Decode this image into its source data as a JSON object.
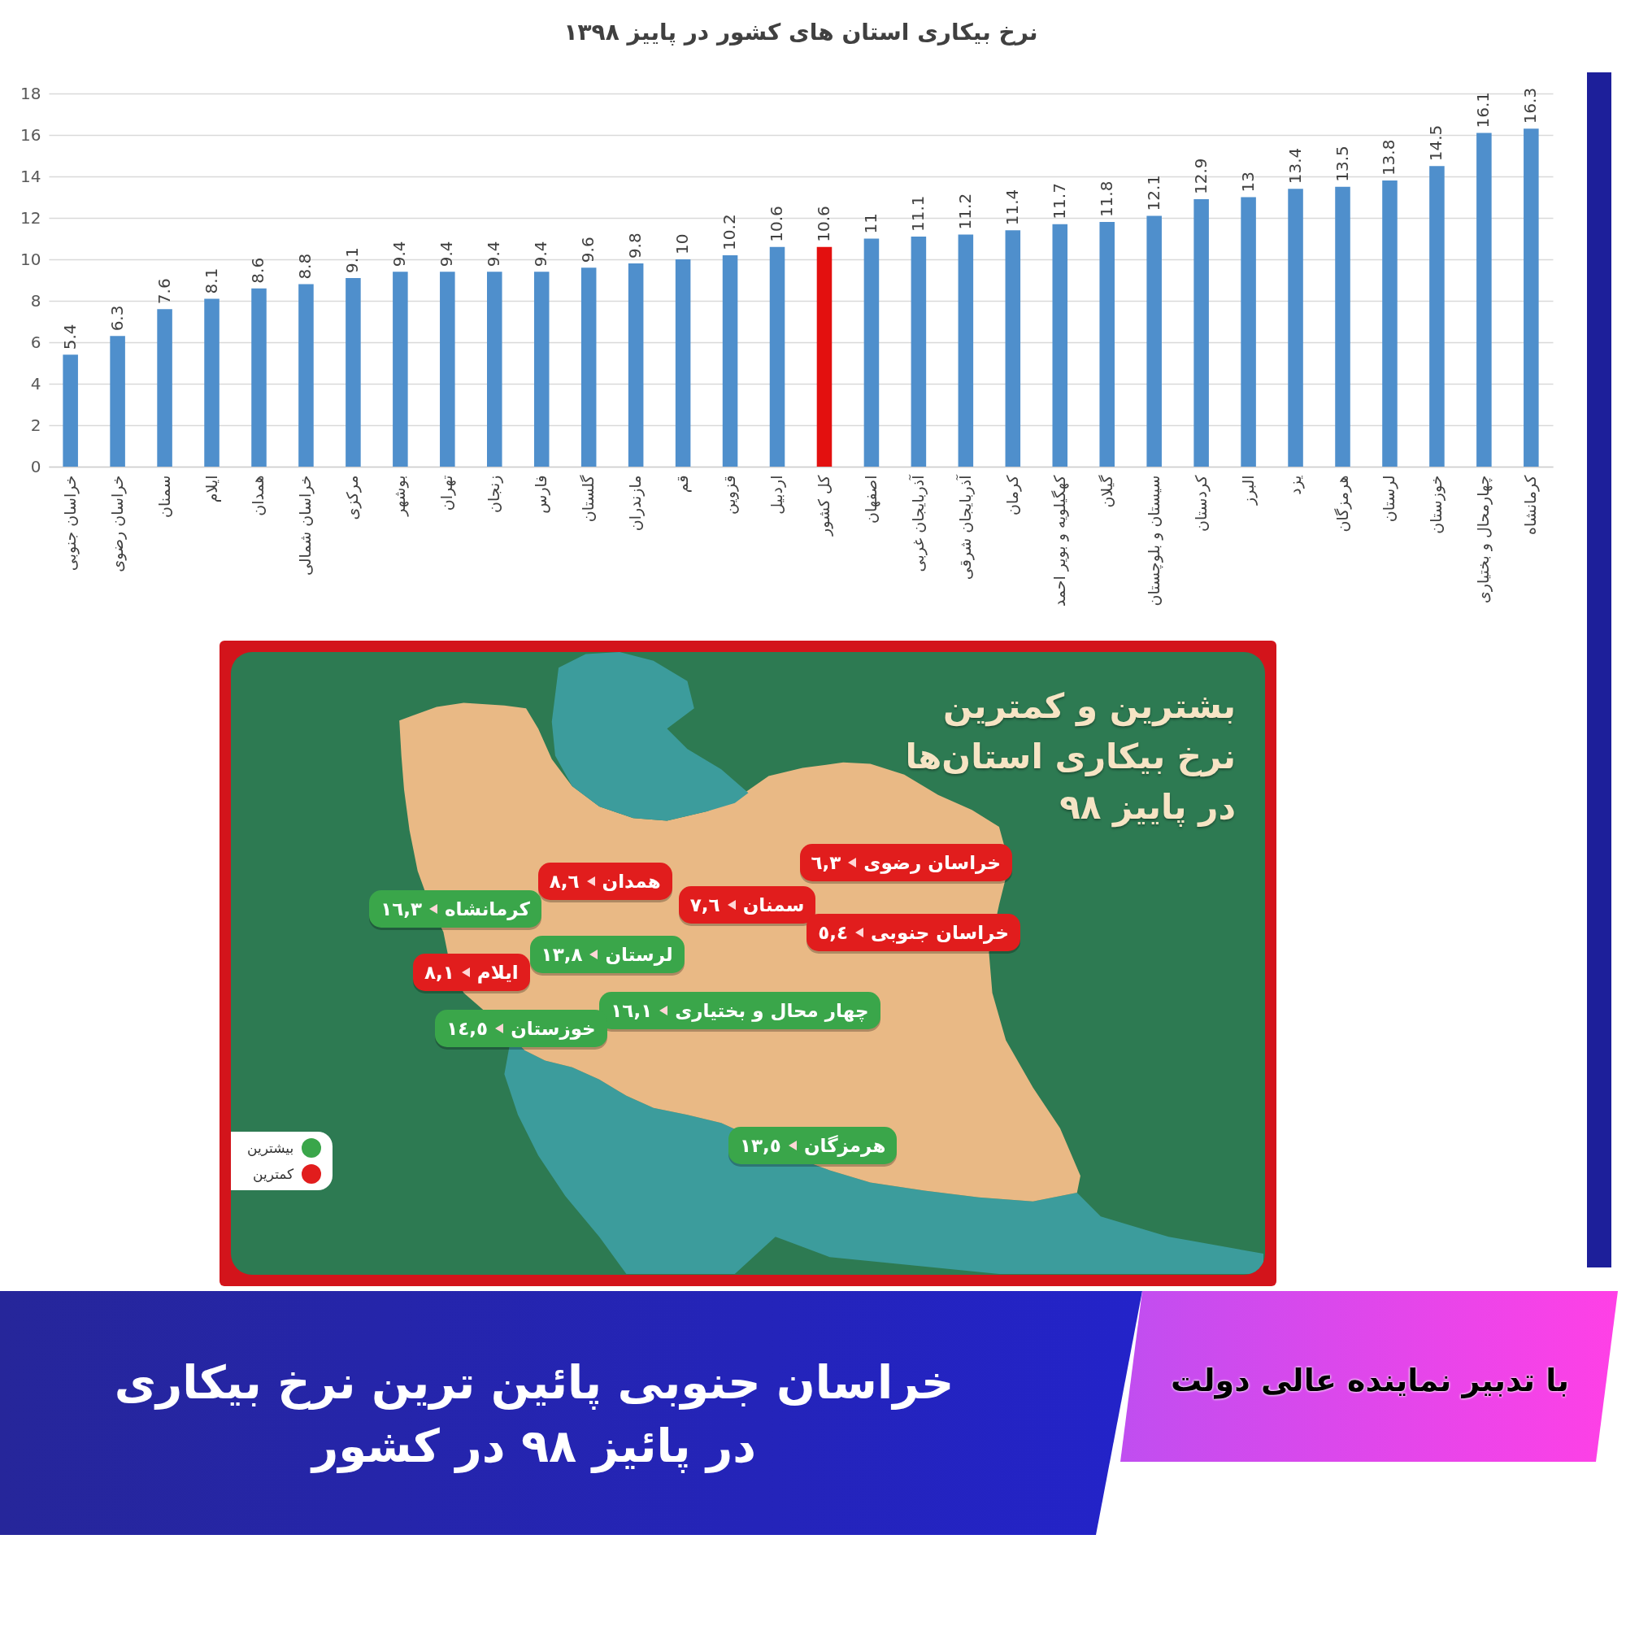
{
  "chart_data": [
    {
      "type": "bar",
      "title": "نرخ بیکاری استان های کشور در پاییز ۱۳۹۸",
      "categories": [
        "خراسان جنوبی",
        "خراسان رضوی",
        "سمنان",
        "ایلام",
        "همدان",
        "خراسان شمالی",
        "مرکزی",
        "بوشهر",
        "تهران",
        "زنجان",
        "فارس",
        "گلستان",
        "مازندران",
        "قم",
        "قزوین",
        "اردبیل",
        "کل کشور",
        "اصفهان",
        "آذربایجان غربی",
        "آذربایجان شرقی",
        "کرمان",
        "کهگیلویه و بویر احمد",
        "گیلان",
        "سیستان و بلوچستان",
        "کردستان",
        "البرز",
        "یزد",
        "هرمزگان",
        "لرستان",
        "خوزستان",
        "چهارمحال و بختیاری",
        "کرمانشاه"
      ],
      "values": [
        5.4,
        6.3,
        7.6,
        8.1,
        8.6,
        8.8,
        9.1,
        9.4,
        9.4,
        9.4,
        9.4,
        9.6,
        9.8,
        10,
        10.2,
        10.6,
        10.6,
        11,
        11.1,
        11.2,
        11.4,
        11.7,
        11.8,
        12.1,
        12.9,
        13,
        13.4,
        13.5,
        13.8,
        14.5,
        16.1,
        16.3
      ],
      "colors": [
        "#4f8fcc",
        "#4f8fcc",
        "#4f8fcc",
        "#4f8fcc",
        "#4f8fcc",
        "#4f8fcc",
        "#4f8fcc",
        "#4f8fcc",
        "#4f8fcc",
        "#4f8fcc",
        "#4f8fcc",
        "#4f8fcc",
        "#4f8fcc",
        "#4f8fcc",
        "#4f8fcc",
        "#4f8fcc",
        "#e3100f",
        "#4f8fcc",
        "#4f8fcc",
        "#4f8fcc",
        "#4f8fcc",
        "#4f8fcc",
        "#4f8fcc",
        "#4f8fcc",
        "#4f8fcc",
        "#4f8fcc",
        "#4f8fcc",
        "#4f8fcc",
        "#4f8fcc",
        "#4f8fcc",
        "#4f8fcc",
        "#4f8fcc"
      ],
      "ylim": [
        0,
        18
      ],
      "yticks": [
        0,
        2,
        4,
        6,
        8,
        10,
        12,
        14,
        16,
        18
      ],
      "grid": "y",
      "data_labels": true
    },
    {
      "type": "other",
      "title": "بشترین و کمترین\nنرخ بیکاری استان‌ها\nدر پاییز ۹۸",
      "categories": [
        "خراسان رضوی",
        "همدان",
        "سمنان",
        "کرمانشاه",
        "خراسان جنوبی",
        "لرستان",
        "ایلام",
        "چهار محال و بختیاری",
        "خوزستان",
        "هرمزگان"
      ],
      "series": [
        {
          "name": "بیشترین",
          "color": "#3aa64a",
          "values": [
            null,
            null,
            null,
            16.3,
            null,
            13.8,
            null,
            16.1,
            14.5,
            13.5
          ],
          "value_labels": [
            null,
            null,
            null,
            "١٦,٣",
            null,
            "١٣,٨",
            null,
            "١٦,١",
            "١٤,٥",
            "١٣,٥"
          ]
        },
        {
          "name": "کمترین",
          "color": "#e11d1d",
          "values": [
            6.3,
            8.6,
            7.6,
            null,
            5.4,
            null,
            8.1,
            null,
            null,
            null
          ],
          "value_labels": [
            "٦,٣",
            "٨,٦",
            "٧,٦",
            null,
            "٥,٤",
            null,
            "٨,١",
            null,
            null,
            null
          ]
        }
      ],
      "legend": "bottom left"
    },
    {
      "type": "other",
      "title": "خراسان جنوبی پائین ترین نرخ بیکاری\nدر پائیز ۹۸ در کشور",
      "subtitle": "با تدبیر نماینده عالی دولت"
    }
  ]
}
